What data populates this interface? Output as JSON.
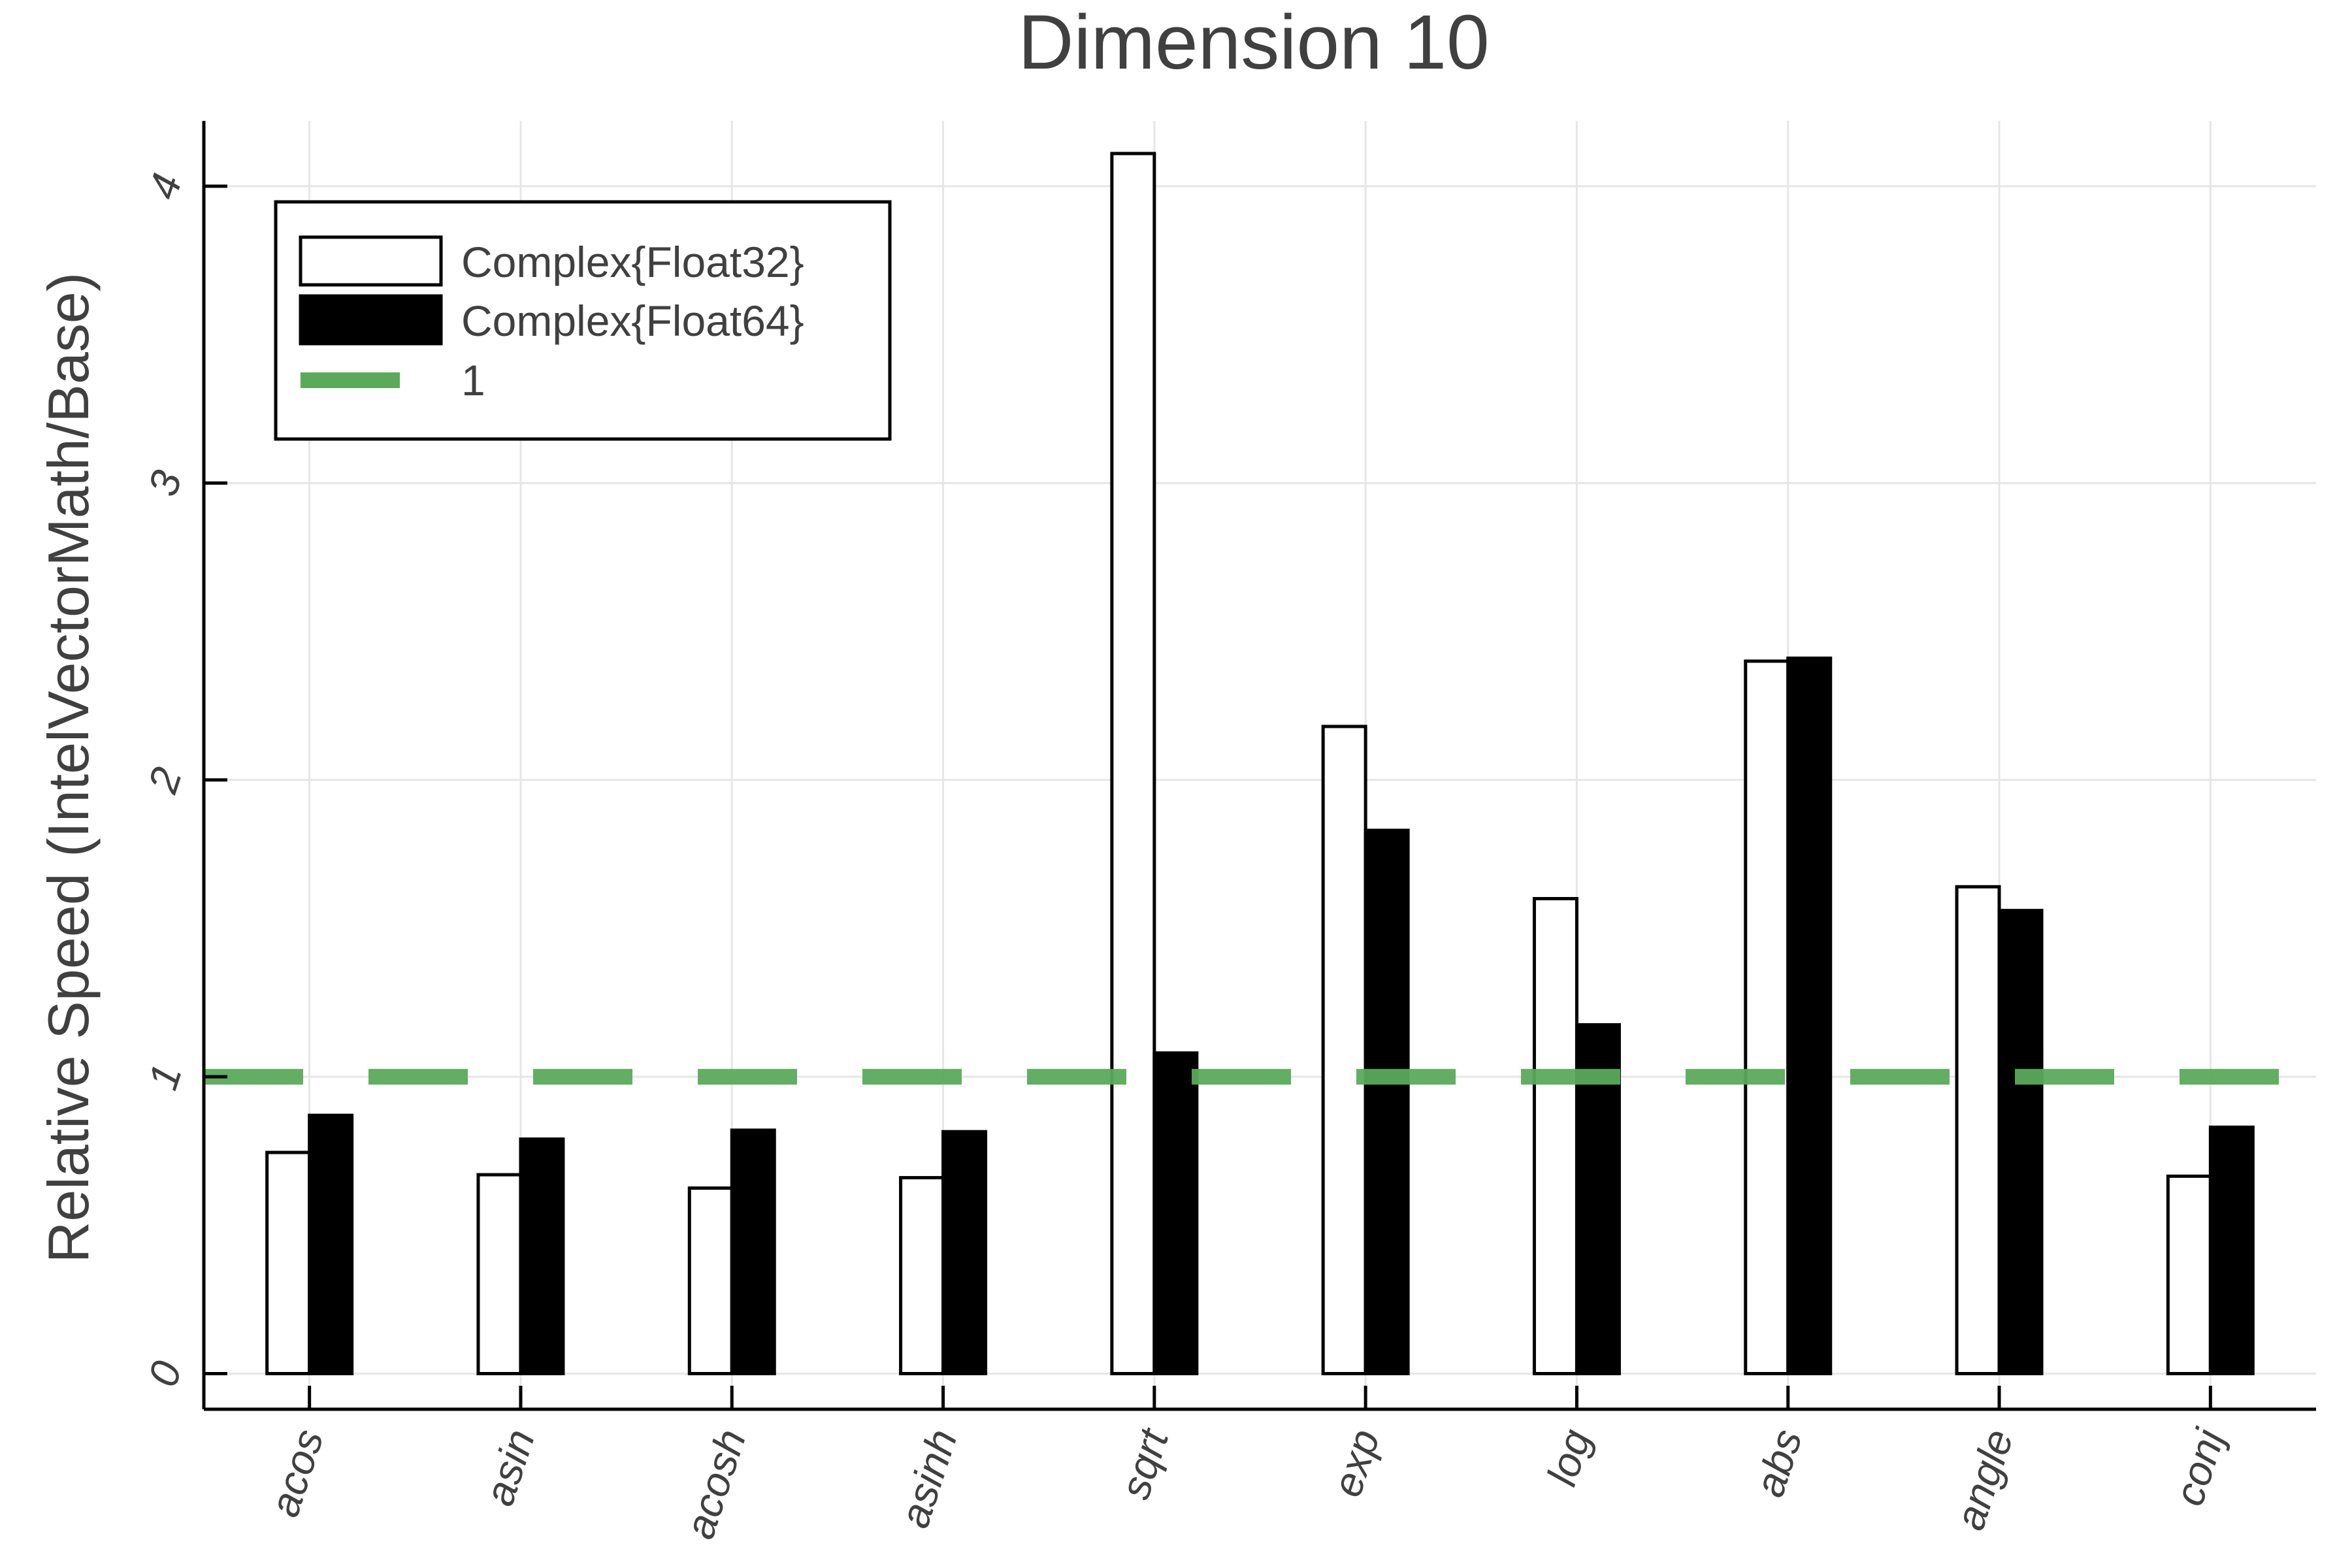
{
  "chart_data": {
    "type": "bar",
    "title": "Dimension 10",
    "xlabel": "",
    "ylabel": "Relative Speed (IntelVectorMath/Base)",
    "categories": [
      "acos",
      "asin",
      "acosh",
      "asinh",
      "sqrt",
      "exp",
      "log",
      "abs",
      "angle",
      "conj"
    ],
    "series": [
      {
        "name": "Complex{Float32}",
        "fill": "#ffffff",
        "stroke": "#000000",
        "values": [
          0.745,
          0.67,
          0.625,
          0.66,
          4.11,
          2.18,
          1.6,
          2.4,
          1.64,
          0.665
        ]
      },
      {
        "name": "Complex{Float64}",
        "fill": "#000000",
        "stroke": "#000000",
        "values": [
          0.87,
          0.79,
          0.82,
          0.815,
          1.08,
          1.83,
          1.175,
          2.41,
          1.56,
          0.83
        ]
      }
    ],
    "reference_line": {
      "name": "1",
      "value": 1,
      "color": "#5aaa5a",
      "style": "dashed"
    },
    "yticks": [
      0,
      1,
      2,
      3,
      4
    ],
    "ylim": [
      -0.12,
      4.22
    ],
    "grid": true,
    "legend_position": "top-left"
  }
}
